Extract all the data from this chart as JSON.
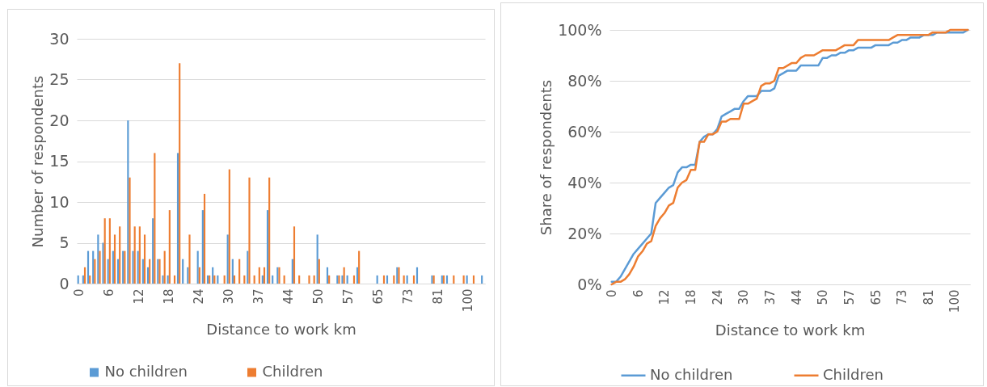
{
  "chart_data": [
    {
      "type": "bar",
      "xlabel": "Distance to work km",
      "ylabel": "Number of respondents",
      "categories": [
        "0",
        null,
        null,
        null,
        null,
        null,
        "6",
        null,
        null,
        null,
        null,
        null,
        "12",
        null,
        null,
        null,
        null,
        null,
        "18",
        null,
        null,
        null,
        null,
        null,
        "24",
        null,
        null,
        null,
        null,
        null,
        "30",
        null,
        null,
        null,
        null,
        null,
        "37",
        null,
        null,
        null,
        null,
        null,
        "44",
        null,
        null,
        null,
        null,
        null,
        "50",
        null,
        null,
        null,
        null,
        null,
        "57",
        null,
        null,
        null,
        null,
        null,
        "65",
        null,
        null,
        null,
        null,
        null,
        "73",
        null,
        null,
        null,
        null,
        null,
        "81",
        null,
        null,
        null,
        null,
        null,
        "100",
        null,
        null,
        null
      ],
      "series": [
        {
          "name": "No children",
          "color": "#5b9bd5",
          "values": [
            1,
            1,
            4,
            4,
            6,
            5,
            3,
            4,
            3,
            4,
            20,
            4,
            4,
            3,
            2,
            8,
            3,
            1,
            1,
            0,
            16,
            3,
            2,
            0,
            4,
            9,
            1,
            2,
            1,
            0,
            6,
            3,
            0,
            0,
            4,
            0,
            0,
            1,
            9,
            1,
            2,
            0,
            0,
            3,
            0,
            0,
            0,
            0,
            6,
            0,
            2,
            0,
            1,
            1,
            1,
            0,
            2,
            0,
            0,
            0,
            1,
            0,
            1,
            0,
            2,
            0,
            1,
            0,
            2,
            0,
            0,
            1,
            0,
            1,
            1,
            0,
            0,
            0,
            1,
            0,
            0,
            1
          ]
        },
        {
          "name": "Children",
          "color": "#ed7d31",
          "values": [
            0,
            2,
            1,
            3,
            4,
            8,
            8,
            6,
            7,
            4,
            13,
            7,
            7,
            6,
            3,
            16,
            3,
            4,
            9,
            1,
            27,
            0,
            6,
            0,
            2,
            11,
            1,
            1,
            0,
            1,
            14,
            1,
            3,
            1,
            13,
            1,
            2,
            2,
            13,
            0,
            2,
            1,
            0,
            7,
            1,
            0,
            1,
            1,
            3,
            0,
            1,
            0,
            1,
            2,
            0,
            1,
            4,
            0,
            0,
            0,
            0,
            1,
            0,
            1,
            2,
            1,
            0,
            1,
            0,
            0,
            0,
            1,
            0,
            1,
            0,
            1,
            0,
            1,
            0,
            1,
            0,
            0
          ]
        }
      ],
      "ylim": [
        0,
        30
      ],
      "yticks": [
        0,
        5,
        10,
        15,
        20,
        25,
        30
      ],
      "grid": "y",
      "legend": "bottom"
    },
    {
      "type": "line",
      "xlabel": "Distance to work km",
      "ylabel": "Share of respondents",
      "categories": [
        "0",
        null,
        null,
        null,
        null,
        null,
        "6",
        null,
        null,
        null,
        null,
        null,
        "12",
        null,
        null,
        null,
        null,
        null,
        "18",
        null,
        null,
        null,
        null,
        null,
        "24",
        null,
        null,
        null,
        null,
        null,
        "30",
        null,
        null,
        null,
        null,
        null,
        "37",
        null,
        null,
        null,
        null,
        null,
        "44",
        null,
        null,
        null,
        null,
        null,
        "50",
        null,
        null,
        null,
        null,
        null,
        "57",
        null,
        null,
        null,
        null,
        null,
        "65",
        null,
        null,
        null,
        null,
        null,
        "73",
        null,
        null,
        null,
        null,
        null,
        "81",
        null,
        null,
        null,
        null,
        null,
        "100",
        null,
        null,
        null
      ],
      "series": [
        {
          "name": "No children",
          "color": "#5b9bd5",
          "values": [
            1,
            1,
            3,
            6,
            9,
            12,
            14,
            16,
            18,
            20,
            32,
            34,
            36,
            38,
            39,
            44,
            46,
            46,
            47,
            47,
            56,
            58,
            59,
            59,
            61,
            66,
            67,
            68,
            69,
            69,
            72,
            74,
            74,
            74,
            76,
            76,
            76,
            77,
            82,
            83,
            84,
            84,
            84,
            86,
            86,
            86,
            86,
            86,
            89,
            89,
            90,
            90,
            91,
            91,
            92,
            92,
            93,
            93,
            93,
            93,
            94,
            94,
            94,
            94,
            95,
            95,
            96,
            96,
            97,
            97,
            97,
            98,
            98,
            98,
            99,
            99,
            99,
            99,
            99,
            99,
            99,
            100
          ]
        },
        {
          "name": "Children",
          "color": "#ed7d31",
          "values": [
            0,
            1,
            1,
            2,
            4,
            7,
            11,
            13,
            16,
            17,
            23,
            26,
            28,
            31,
            32,
            38,
            40,
            41,
            45,
            45,
            56,
            56,
            59,
            59,
            60,
            64,
            64,
            65,
            65,
            65,
            71,
            71,
            72,
            73,
            78,
            79,
            79,
            80,
            85,
            85,
            86,
            87,
            87,
            89,
            90,
            90,
            90,
            91,
            92,
            92,
            92,
            92,
            93,
            94,
            94,
            94,
            96,
            96,
            96,
            96,
            96,
            96,
            96,
            96,
            97,
            98,
            98,
            98,
            98,
            98,
            98,
            98,
            98,
            99,
            99,
            99,
            99,
            100,
            100,
            100,
            100,
            100
          ]
        }
      ],
      "ylim": [
        0,
        100
      ],
      "yticks": [
        {
          "value": 0,
          "label": "0%"
        },
        {
          "value": 20,
          "label": "20%"
        },
        {
          "value": 40,
          "label": "40%"
        },
        {
          "value": 60,
          "label": "60%"
        },
        {
          "value": 80,
          "label": "80%"
        },
        {
          "value": 100,
          "label": "100%"
        }
      ],
      "grid": "y",
      "legend": "bottom"
    }
  ]
}
